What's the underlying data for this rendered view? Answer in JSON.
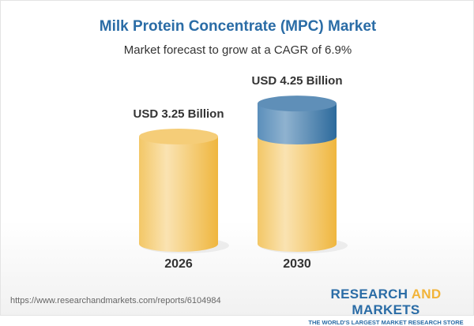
{
  "chart_data": {
    "type": "bar",
    "title": "Milk Protein Concentrate (MPC) Market",
    "subtitle": "Market forecast to grow at a CAGR of 6.9%",
    "categories": [
      "2026",
      "2030"
    ],
    "values": [
      3.25,
      4.25
    ],
    "data_labels": [
      "USD 3.25 Billion",
      "USD 4.25 Billion"
    ],
    "unit": "USD Billion",
    "colors": {
      "base": "#f2c15a",
      "growth": "#3f7fb0",
      "title": "#2a6ca6"
    }
  },
  "footer": {
    "url": "https://www.researchandmarkets.com/reports/6104984",
    "logo_part1": "RESEARCH ",
    "logo_part2": "AND",
    "logo_part3": " MARKETS",
    "tagline": "THE WORLD'S LARGEST MARKET RESEARCH STORE"
  }
}
